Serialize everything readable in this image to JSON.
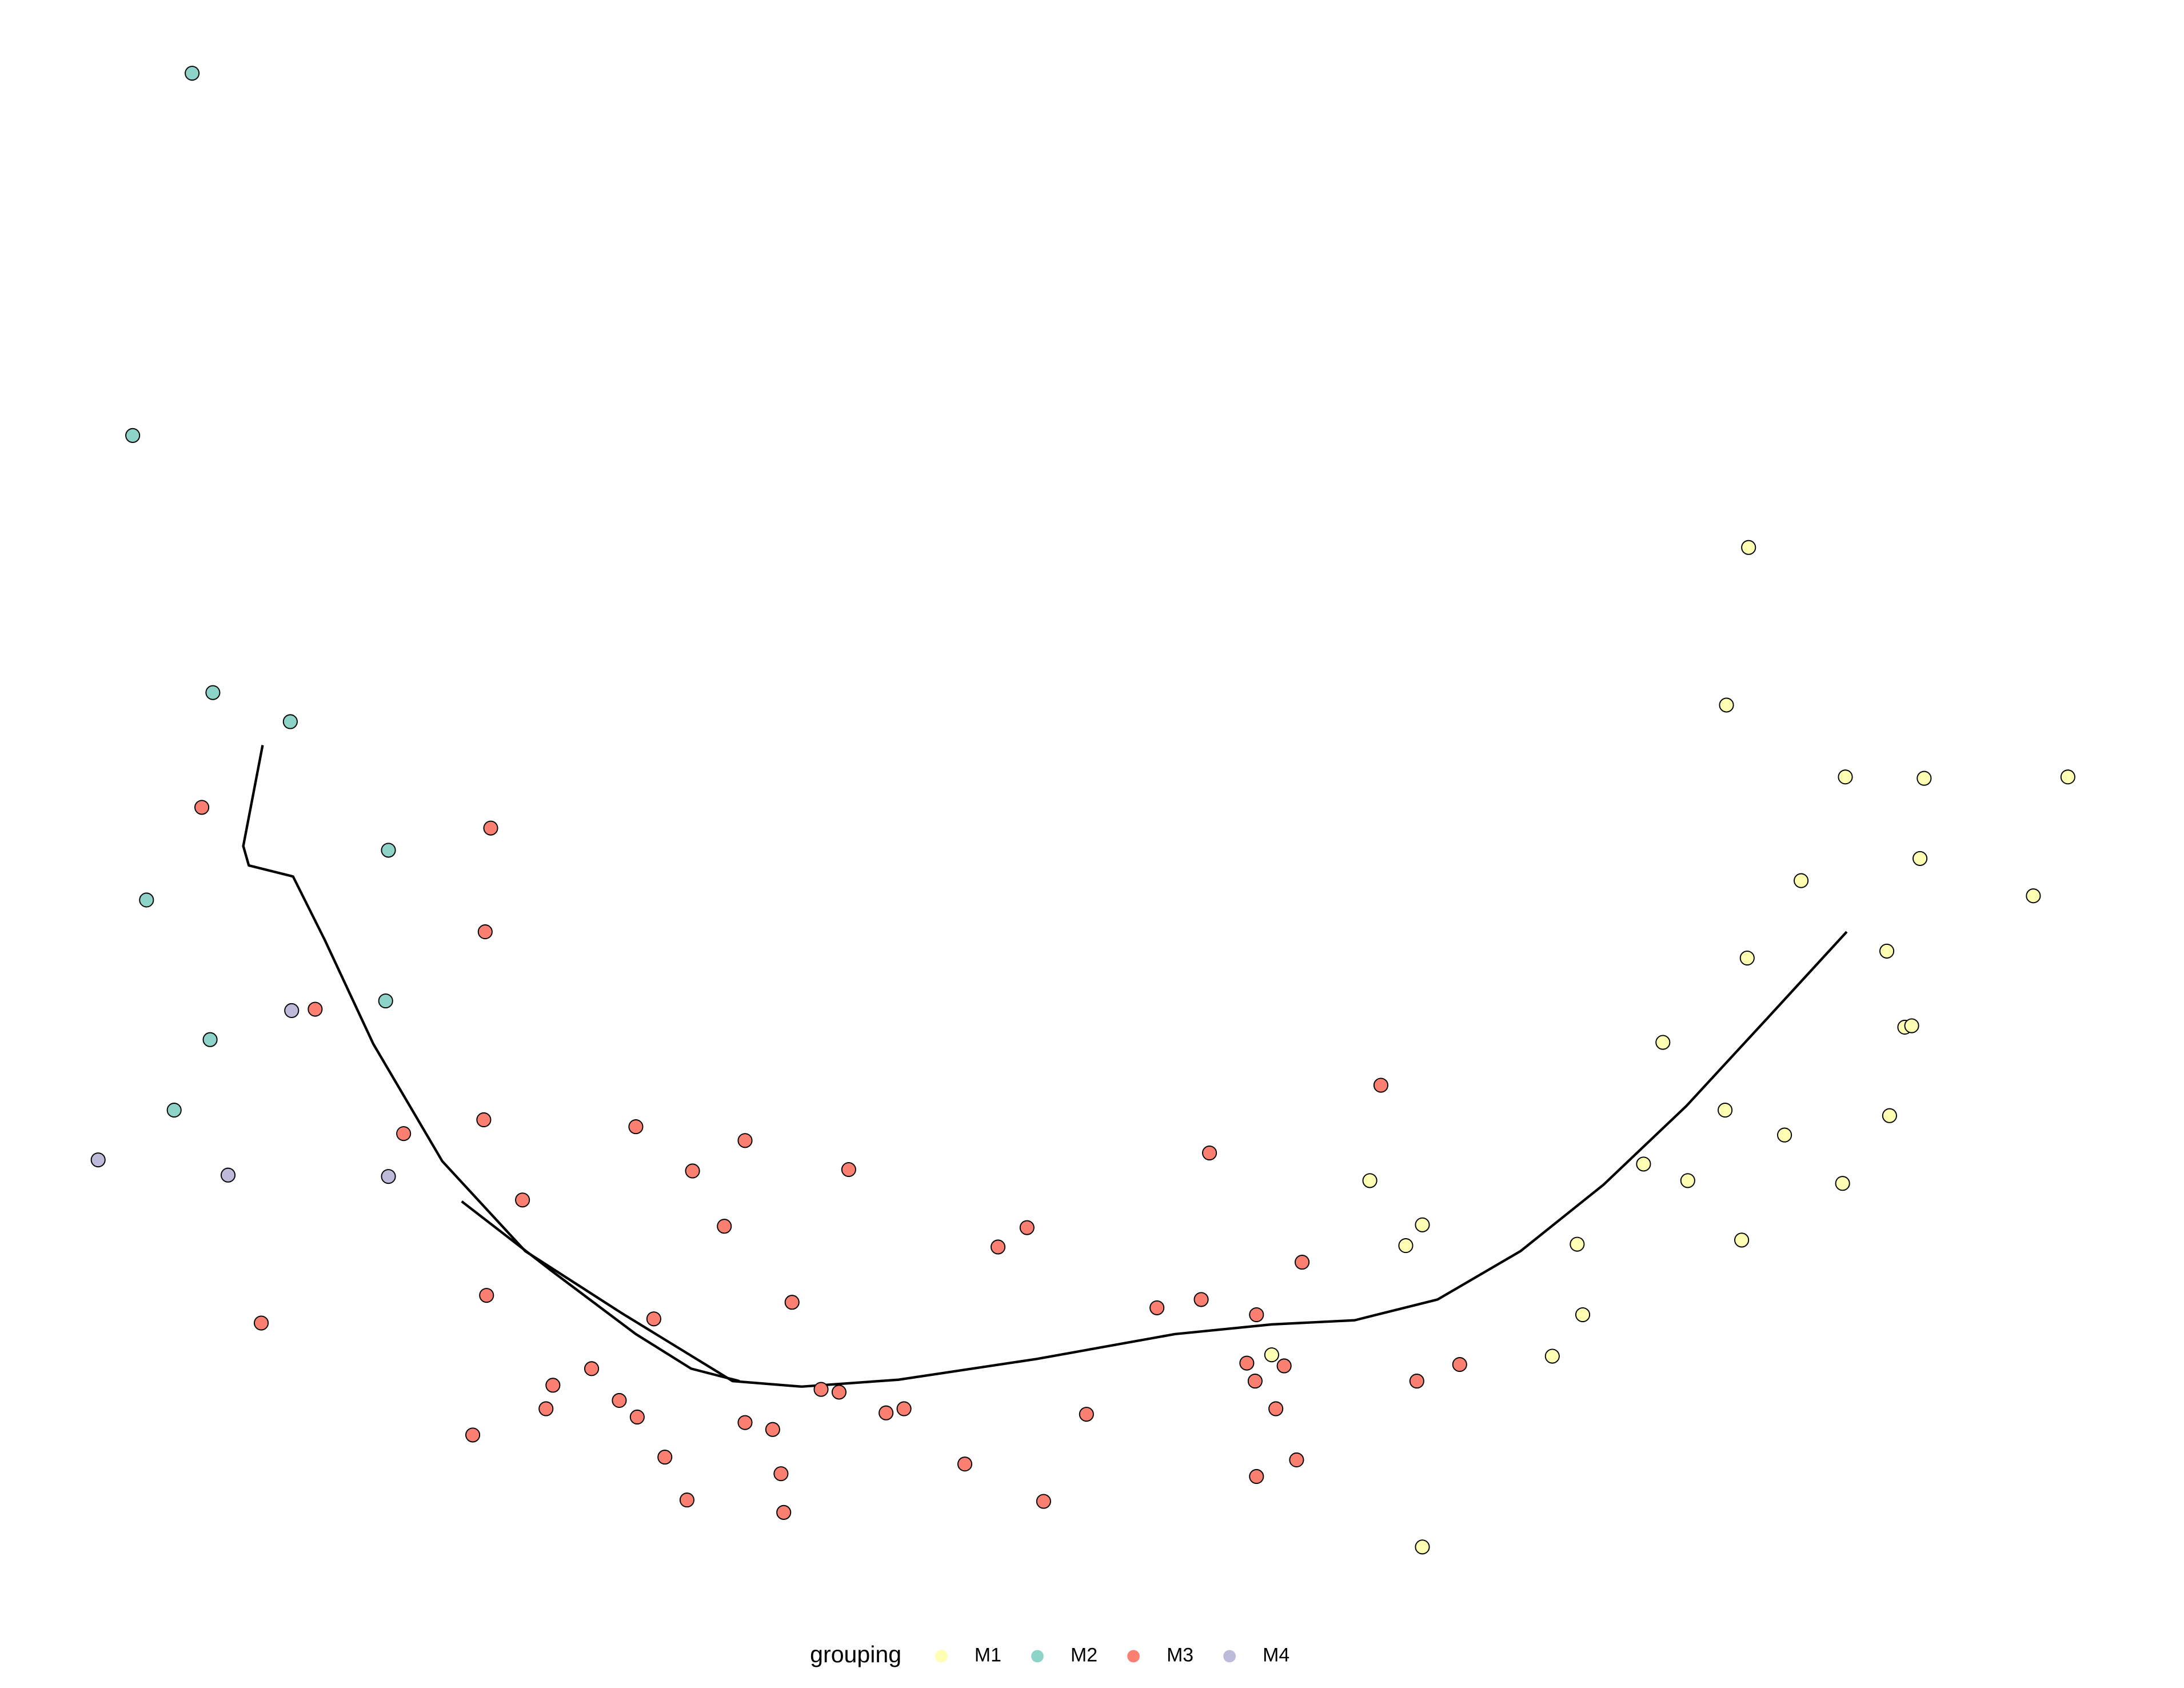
{
  "chart_data": {
    "type": "scatter",
    "xlim": [
      0,
      1580
    ],
    "ylim": [
      1221,
      0
    ],
    "legend_title": "grouping",
    "legend_position": "bottom",
    "series": [
      {
        "name": "M1",
        "color": "#ffffb3",
        "x": [
          1265,
          1249,
          1335,
          1392,
          1496,
          1303,
          1389,
          1471,
          1264,
          1365,
          1203,
          1378,
          1383,
          1248,
          1367,
          1291,
          1189,
          1221,
          1333,
          991,
          1029,
          1017,
          1141,
          1260,
          1145,
          920,
          1123,
          1029
        ],
        "values": [
          396,
          510,
          562,
          563,
          562,
          637,
          621,
          648,
          693,
          688,
          754,
          743,
          742,
          803,
          807,
          821,
          842,
          854,
          856,
          854,
          886,
          901,
          900,
          897,
          951,
          980,
          981,
          1119
        ]
      },
      {
        "name": "M2",
        "color": "#8dd3c7",
        "x": [
          139,
          96,
          154,
          210,
          281,
          106,
          279,
          152,
          126
        ],
        "values": [
          53,
          315,
          501,
          522,
          615,
          651,
          724,
          752,
          803
        ]
      },
      {
        "name": "M3",
        "color": "#fb8072",
        "x": [
          146,
          355,
          351,
          228,
          350,
          292,
          460,
          539,
          501,
          614,
          378,
          524,
          189,
          352,
          473,
          573,
          722,
          743,
          875,
          999,
          942,
          837,
          869,
          909,
          902,
          929,
          908,
          1025,
          1056,
          923,
          400,
          428,
          395,
          448,
          461,
          342,
          481,
          497,
          539,
          559,
          565,
          567,
          594,
          607,
          641,
          654,
          698,
          755,
          786,
          909,
          938
        ],
        "values": [
          584,
          599,
          674,
          730,
          810,
          820,
          815,
          825,
          847,
          846,
          868,
          887,
          957,
          937,
          954,
          942,
          902,
          888,
          834,
          785,
          913,
          946,
          940,
          951,
          986,
          988,
          999,
          999,
          987,
          1019,
          1002,
          990,
          1019,
          1013,
          1025,
          1038,
          1054,
          1085,
          1029,
          1034,
          1066,
          1094,
          1005,
          1007,
          1022,
          1019,
          1059,
          1086,
          1023,
          1068,
          1056
        ]
      },
      {
        "name": "M4",
        "color": "#bebada",
        "x": [
          211,
          71,
          165,
          281
        ],
        "values": [
          731,
          839,
          850,
          851
        ]
      }
    ],
    "curves": [
      {
        "color": "#000000",
        "x": [
          190,
          176,
          180,
          212,
          235,
          270,
          320,
          380,
          450,
          530,
          580,
          650,
          750,
          850,
          920,
          980,
          1040,
          1100,
          1160,
          1220,
          1280,
          1336
        ],
        "values": [
          539,
          612,
          626,
          634,
          680,
          755,
          840,
          905,
          950,
          999,
          1003,
          998,
          983,
          965,
          958,
          955,
          940,
          905,
          857,
          800,
          735,
          674
        ]
      },
      {
        "color": "#000000",
        "x": [
          334,
          400,
          460,
          500,
          535
        ],
        "values": [
          869,
          920,
          965,
          990,
          999
        ]
      }
    ]
  }
}
